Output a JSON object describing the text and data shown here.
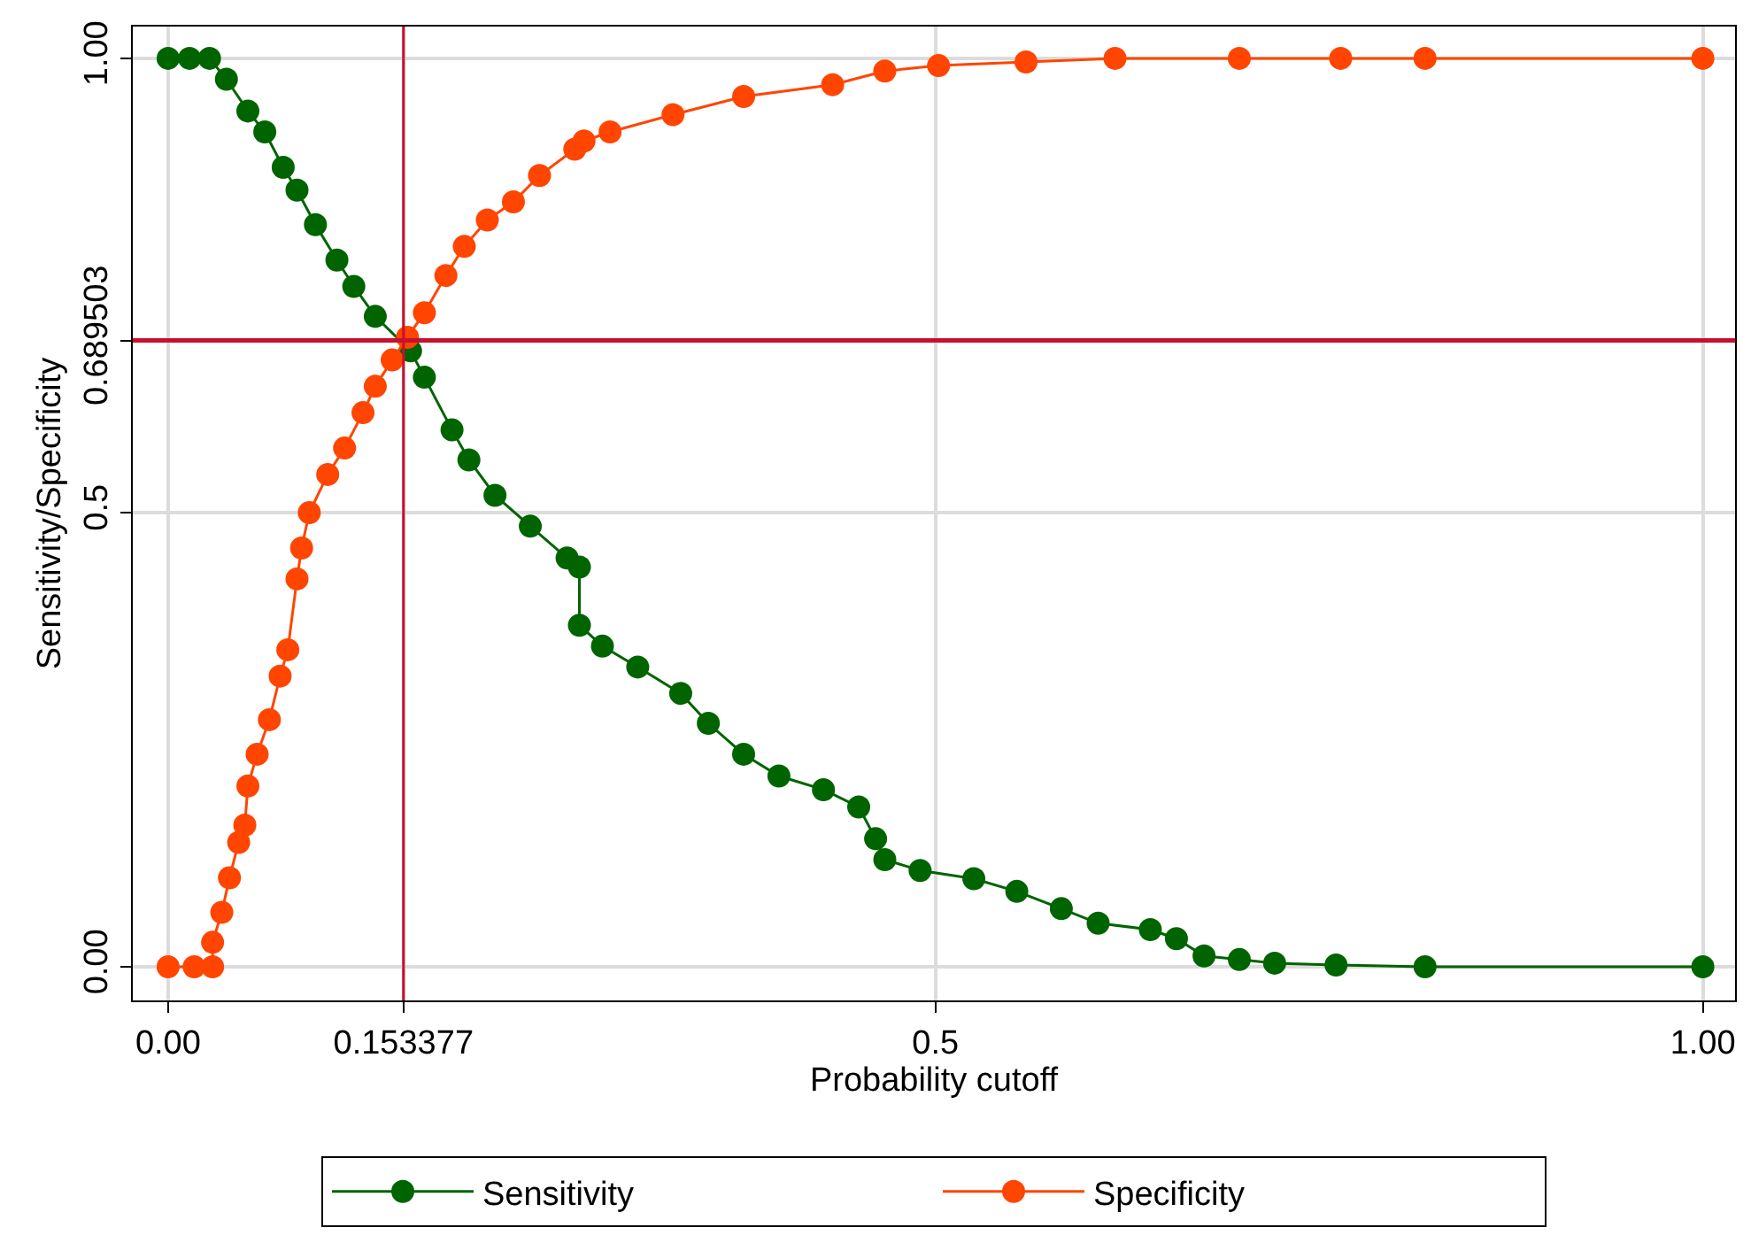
{
  "chart_data": {
    "type": "line",
    "xlabel": "Probability cutoff",
    "ylabel": "Sensitivity/Specificity",
    "xlim": [
      -0.023,
      1.021
    ],
    "ylim": [
      -0.037,
      1.035
    ],
    "xticks": [
      {
        "value": 0,
        "label": "0.00"
      },
      0.153377,
      0.5,
      {
        "value": 1,
        "label": "1.00"
      }
    ],
    "yticks": [
      {
        "value": 0,
        "label": "0.00"
      },
      0.5,
      0.689503,
      {
        "value": 1,
        "label": "1.00"
      }
    ],
    "grid": true,
    "legend": "bottom",
    "marker": "circle",
    "line_style": "solid",
    "ref_lines": [
      {
        "axis": "x",
        "value": 0.153377,
        "color": "#c8102e"
      },
      {
        "axis": "y",
        "value": 0.689503,
        "color": "#c8102e"
      }
    ],
    "series": [
      {
        "name": "Sensitivity",
        "color": "#006400",
        "x": [
          0,
          0.014,
          0.027,
          0.038,
          0.052,
          0.063,
          0.075,
          0.084,
          0.096,
          0.11,
          0.121,
          0.135,
          0.158,
          0.167,
          0.185,
          0.196,
          0.213,
          0.236,
          0.26,
          0.268,
          0.268,
          0.283,
          0.306,
          0.334,
          0.352,
          0.375,
          0.398,
          0.427,
          0.45,
          0.461,
          0.467,
          0.49,
          0.525,
          0.553,
          0.582,
          0.606,
          0.64,
          0.657,
          0.675,
          0.698,
          0.721,
          0.761,
          0.819,
          1.0
        ],
        "values": [
          1.0,
          1.0,
          1.0,
          0.977,
          0.942,
          0.919,
          0.88,
          0.855,
          0.817,
          0.778,
          0.749,
          0.716,
          0.678,
          0.649,
          0.591,
          0.558,
          0.519,
          0.485,
          0.45,
          0.44,
          0.376,
          0.353,
          0.33,
          0.301,
          0.268,
          0.234,
          0.21,
          0.195,
          0.176,
          0.141,
          0.118,
          0.106,
          0.097,
          0.083,
          0.064,
          0.048,
          0.041,
          0.031,
          0.012,
          0.008,
          0.004,
          0.002,
          0.0,
          0.0
        ]
      },
      {
        "name": "Specificity",
        "color": "#ff4500",
        "x": [
          0,
          0.017,
          0.029,
          0.029,
          0.035,
          0.04,
          0.046,
          0.05,
          0.052,
          0.058,
          0.066,
          0.073,
          0.078,
          0.084,
          0.087,
          0.092,
          0.104,
          0.115,
          0.127,
          0.135,
          0.146,
          0.156,
          0.167,
          0.181,
          0.193,
          0.208,
          0.225,
          0.242,
          0.265,
          0.271,
          0.288,
          0.329,
          0.375,
          0.433,
          0.467,
          0.502,
          0.559,
          0.617,
          0.698,
          0.764,
          0.819,
          1.0
        ],
        "values": [
          0,
          0,
          0,
          0.027,
          0.06,
          0.098,
          0.137,
          0.156,
          0.199,
          0.234,
          0.272,
          0.32,
          0.349,
          0.427,
          0.461,
          0.5,
          0.542,
          0.571,
          0.61,
          0.639,
          0.668,
          0.693,
          0.72,
          0.761,
          0.793,
          0.822,
          0.842,
          0.871,
          0.9,
          0.909,
          0.919,
          0.938,
          0.958,
          0.971,
          0.986,
          0.992,
          0.996,
          1.0,
          1.0,
          1.0,
          1.0,
          1.0
        ]
      }
    ]
  }
}
